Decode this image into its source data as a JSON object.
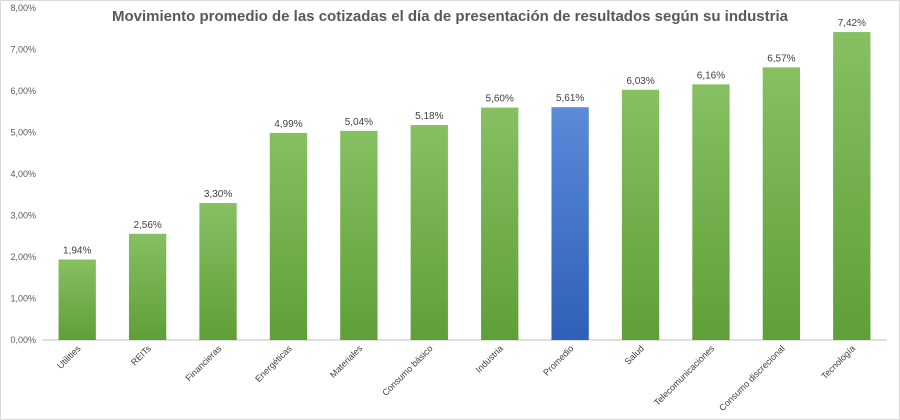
{
  "chart_data": {
    "type": "bar",
    "title": "Movimiento promedio de las cotizadas el día de presentación de resultados según su industria",
    "xlabel": "",
    "ylabel": "",
    "ylim": [
      0,
      8
    ],
    "yticks": [
      0,
      1,
      2,
      3,
      4,
      5,
      6,
      7,
      8
    ],
    "ytick_labels": [
      "0,00%",
      "1,00%",
      "2,00%",
      "3,00%",
      "4,00%",
      "5,00%",
      "6,00%",
      "7,00%",
      "8,00%"
    ],
    "categories": [
      "Utilities",
      "REITs",
      "Financieras",
      "Energéticas",
      "Materiales",
      "Consumo básico",
      "Industria",
      "Promedio",
      "Salud",
      "Telecomunicaciones",
      "Consumo discrecional",
      "Tecnología"
    ],
    "values": [
      1.94,
      2.56,
      3.3,
      4.99,
      5.04,
      5.18,
      5.6,
      5.61,
      6.03,
      6.16,
      6.57,
      7.42
    ],
    "value_labels": [
      "1,94%",
      "2,56%",
      "3,30%",
      "4,99%",
      "5,04%",
      "5,18%",
      "5,60%",
      "5,61%",
      "6,03%",
      "6,16%",
      "6,57%",
      "7,42%"
    ],
    "highlight_category": "Promedio",
    "grid": false,
    "legend": "none",
    "colors": {
      "bar": "#70ad47",
      "highlight": "#4472c4",
      "axis": "#bfbfbf"
    }
  }
}
